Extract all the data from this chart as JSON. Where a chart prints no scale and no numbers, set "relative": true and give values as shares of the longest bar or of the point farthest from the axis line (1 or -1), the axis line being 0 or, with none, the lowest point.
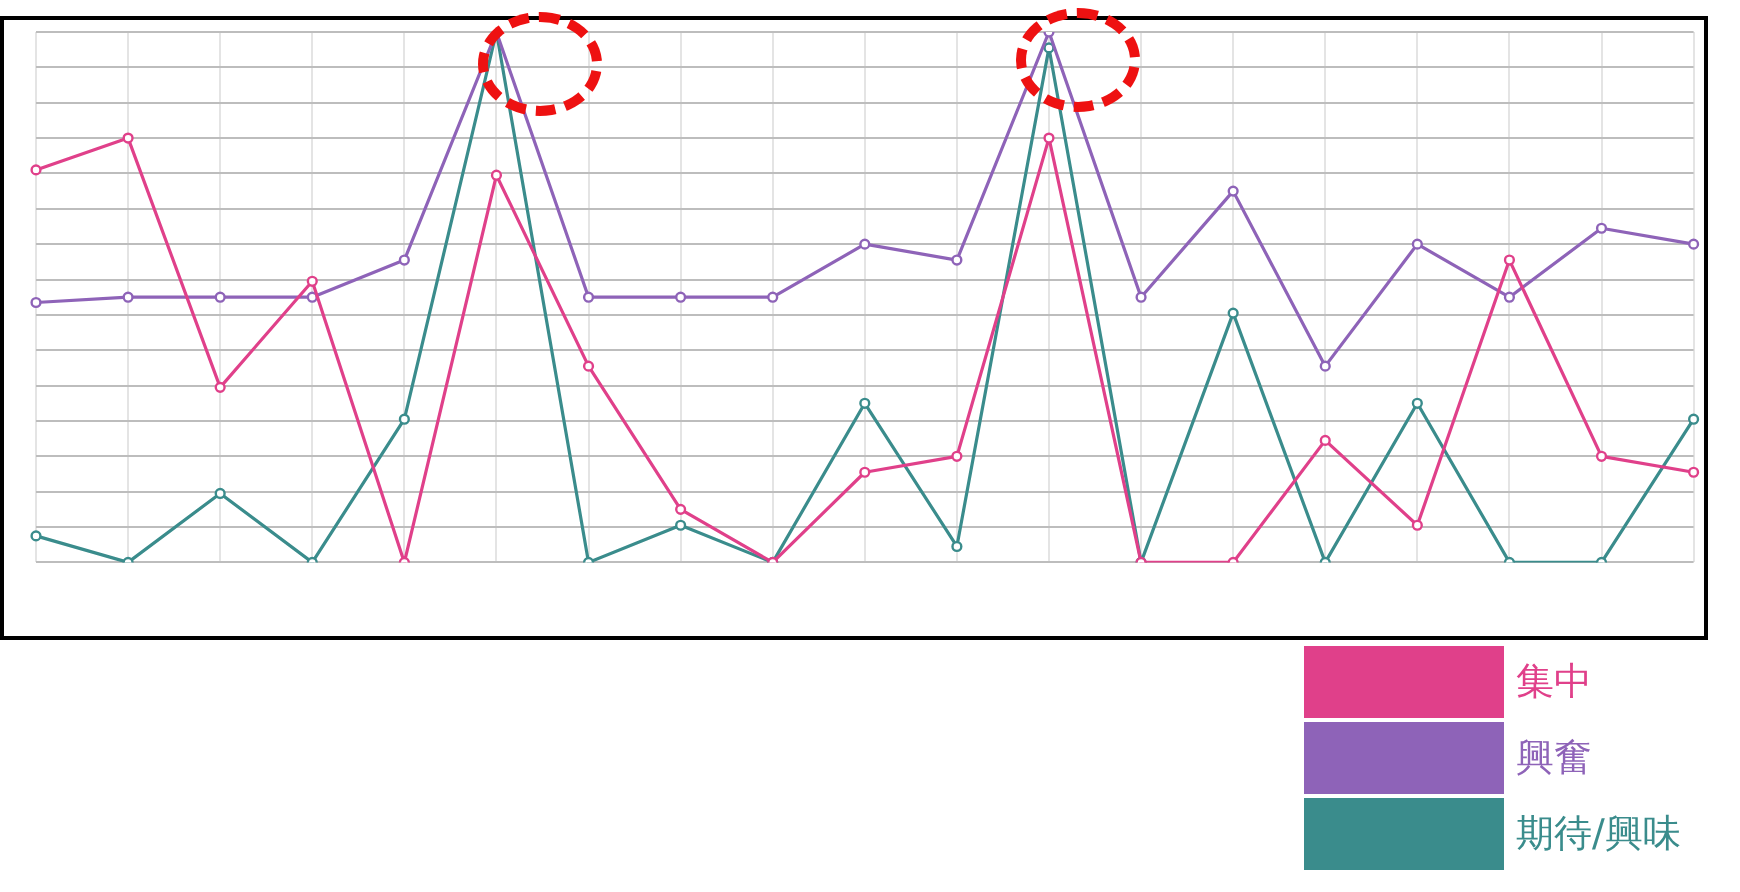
{
  "chart_data": {
    "type": "line",
    "relative": true,
    "grid": true,
    "legend": "bottom right",
    "marker": "circle",
    "categories": [
      null,
      null,
      null,
      null,
      null,
      null,
      null,
      null,
      null,
      null,
      null,
      null,
      null,
      null,
      null,
      null,
      null,
      null,
      null
    ],
    "series": [
      {
        "name": "集中",
        "color": "#e0408a",
        "values": [
          0.74,
          0.8,
          0.33,
          0.53,
          0,
          0.73,
          0.37,
          0.1,
          0,
          0.17,
          0.2,
          0.8,
          0,
          0,
          0.23,
          0.07,
          0.57,
          0.2,
          0.17
        ]
      },
      {
        "name": "興奮",
        "color": "#8e63b8",
        "values": [
          0.49,
          0.5,
          0.5,
          0.5,
          0.57,
          1,
          0.5,
          0.5,
          0.5,
          0.6,
          0.57,
          1,
          0.5,
          0.7,
          0.37,
          0.6,
          0.5,
          0.63,
          0.6
        ]
      },
      {
        "name": "期待/興味",
        "color": "#3a8c8c",
        "values": [
          0.05,
          0,
          0.13,
          0,
          0.27,
          1,
          0,
          0.07,
          0,
          0.3,
          0.03,
          0.97,
          0,
          0.47,
          0,
          0.3,
          0,
          0,
          0.27
        ]
      }
    ]
  }
}
